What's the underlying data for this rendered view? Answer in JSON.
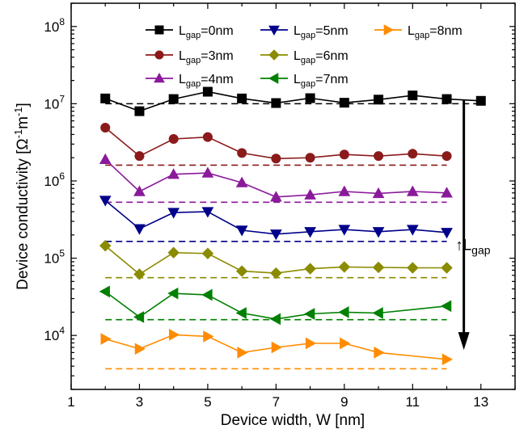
{
  "chart_data": {
    "type": "line",
    "xlabel": "Device width, W [nm]",
    "ylabel": "Device conductivity [Ω⁻¹m⁻¹]",
    "xlim": [
      1,
      14
    ],
    "ylim": [
      2000,
      200000000
    ],
    "yscale": "log",
    "x_ticks": [
      1,
      3,
      5,
      7,
      9,
      11,
      13
    ],
    "x_tick_labels": [
      "1",
      "3",
      "5",
      "7",
      "9",
      "11",
      "13"
    ],
    "y_ticks": [
      10000,
      100000,
      1000000,
      10000000,
      100000000
    ],
    "y_tick_labels": [
      {
        "base": "10",
        "exp": "4"
      },
      {
        "base": "10",
        "exp": "5"
      },
      {
        "base": "10",
        "exp": "6"
      },
      {
        "base": "10",
        "exp": "7"
      },
      {
        "base": "10",
        "exp": "8"
      }
    ],
    "grid": false,
    "legend_position": "top",
    "series": [
      {
        "name_main": "L",
        "name_sub": "gap",
        "name_rest": "=0nm",
        "color": "#000000",
        "marker": "square",
        "x": [
          2,
          3,
          4,
          5,
          6,
          7,
          8,
          9,
          10,
          11,
          12,
          13
        ],
        "values": [
          11700000,
          8000000,
          11500000,
          14300000,
          11700000,
          10200000,
          11800000,
          10300000,
          11300000,
          12800000,
          11500000,
          10900000
        ],
        "reference": 10000000
      },
      {
        "name_main": "L",
        "name_sub": "gap",
        "name_rest": "=3nm",
        "color": "#8b1a1a",
        "marker": "circle",
        "x": [
          2,
          3,
          4,
          5,
          6,
          7,
          8,
          9,
          10,
          11,
          12
        ],
        "values": [
          4900000,
          2100000,
          3500000,
          3700000,
          2300000,
          1950000,
          2000000,
          2200000,
          2100000,
          2250000,
          2100000
        ],
        "reference": 1600000
      },
      {
        "name_main": "L",
        "name_sub": "gap",
        "name_rest": "=4nm",
        "color": "#8b1a9b",
        "marker": "triangle-up",
        "x": [
          2,
          3,
          4,
          5,
          6,
          7,
          8,
          9,
          10,
          11,
          12
        ],
        "values": [
          1900000,
          730000,
          1220000,
          1270000,
          950000,
          620000,
          660000,
          730000,
          690000,
          730000,
          700000
        ],
        "reference": 530000
      },
      {
        "name_main": "L",
        "name_sub": "gap",
        "name_rest": "=5nm",
        "color": "#00008b",
        "marker": "triangle-down",
        "x": [
          2,
          3,
          4,
          5,
          6,
          7,
          8,
          9,
          10,
          11,
          12
        ],
        "values": [
          560000,
          240000,
          390000,
          400000,
          230000,
          205000,
          220000,
          235000,
          220000,
          235000,
          215000
        ],
        "reference": 165000
      },
      {
        "name_main": "L",
        "name_sub": "gap",
        "name_rest": "=6nm",
        "color": "#8b8b00",
        "marker": "diamond",
        "x": [
          2,
          3,
          4,
          5,
          6,
          7,
          8,
          9,
          10,
          11,
          12
        ],
        "values": [
          145000,
          62000,
          118000,
          115000,
          68000,
          64000,
          73000,
          77000,
          76000,
          75000,
          75000
        ],
        "reference": 56000
      },
      {
        "name_main": "L",
        "name_sub": "gap",
        "name_rest": "=7nm",
        "color": "#008000",
        "marker": "triangle-left",
        "x": [
          2,
          3,
          4,
          5,
          6,
          7,
          8,
          9,
          10,
          12
        ],
        "values": [
          37000,
          17300,
          35000,
          33500,
          19500,
          16300,
          19000,
          20000,
          19500,
          24000
        ],
        "reference": 16000
      },
      {
        "name_main": "L",
        "name_sub": "gap",
        "name_rest": "=8nm",
        "color": "#ff8c00",
        "marker": "triangle-right",
        "x": [
          2,
          3,
          4,
          5,
          6,
          7,
          8,
          9,
          10,
          12
        ],
        "values": [
          9000,
          6700,
          10200,
          9700,
          6000,
          7000,
          7900,
          7900,
          6000,
          4900
        ],
        "reference": 3700
      }
    ],
    "annotations": [
      {
        "type": "arrow",
        "x": 12.5,
        "y_from": 11000000,
        "y_to": 6500,
        "direction": "down",
        "color": "#000000"
      },
      {
        "main": "↑L",
        "sub": "gap",
        "x": 12.25,
        "y": 150000
      }
    ]
  }
}
